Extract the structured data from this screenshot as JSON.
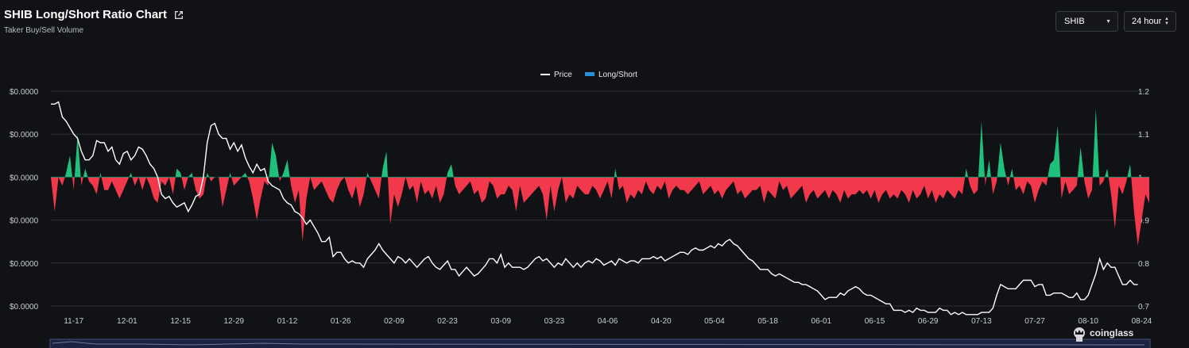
{
  "header": {
    "title": "SHIB Long/Short Ratio Chart",
    "subtitle": "Taker Buy/Sell Volume"
  },
  "controls": {
    "coin_value": "SHIB",
    "period_value": "24 hour"
  },
  "brand": "coinglass",
  "colors": {
    "background": "#111216",
    "long": "#1fc07c",
    "short": "#f2394b",
    "price": "#ffffff",
    "legend_long_short": "#2a8fd8",
    "grid": "#2c2e35"
  },
  "chart_data": {
    "type": "area",
    "legend": [
      "Price",
      "Long/Short"
    ],
    "legend_position": "top-center",
    "grid": true,
    "left_axis_ticks": [
      "$0.0000",
      "$0.0000",
      "$0.0000",
      "$0.0000",
      "$0.0000",
      "$0.0000"
    ],
    "right_axis": {
      "ticks": [
        "1.2",
        "1.1",
        "1",
        "0.9",
        "0.8",
        "0.7"
      ],
      "range": [
        0.7,
        1.2
      ],
      "baseline": 1
    },
    "price_axis_range": [
      0,
      100
    ],
    "x_ticks": [
      "11-17",
      "12-01",
      "12-15",
      "12-29",
      "01-12",
      "01-26",
      "02-09",
      "02-23",
      "03-09",
      "03-23",
      "04-06",
      "04-20",
      "05-04",
      "05-18",
      "06-01",
      "06-15",
      "06-29",
      "07-13",
      "07-27",
      "08-10",
      "08-24"
    ],
    "x_tick_index": [
      6,
      20,
      34,
      48,
      62,
      76,
      90,
      104,
      118,
      132,
      146,
      160,
      174,
      188,
      202,
      216,
      230,
      244,
      258,
      272,
      286
    ],
    "series": [
      {
        "name": "Long/Short",
        "values": [
          1.0,
          0.92,
          1.0,
          0.98,
          1.01,
          1.05,
          0.97,
          1.1,
          0.98,
          1.02,
          0.99,
          0.98,
          0.96,
          1.01,
          0.97,
          0.97,
          0.99,
          0.97,
          0.95,
          0.97,
          0.99,
          1.01,
          0.98,
          1.0,
          0.97,
          1.0,
          0.98,
          0.95,
          0.94,
          0.99,
          0.98,
          1.0,
          0.96,
          1.02,
          1.01,
          0.97,
          1.0,
          1.01,
          0.97,
          0.95,
          0.96,
          1.01,
          0.99,
          1.0,
          1.0,
          0.93,
          0.97,
          1.01,
          0.98,
          0.99,
          1.0,
          1.01,
          0.99,
          0.95,
          0.9,
          0.95,
          0.99,
          0.98,
          1.08,
          1.05,
          0.99,
          1.01,
          1.04,
          0.98,
          0.94,
          0.97,
          0.85,
          0.95,
          1.0,
          0.97,
          0.98,
          0.99,
          0.97,
          0.95,
          0.94,
          0.97,
          0.99,
          1.0,
          0.97,
          0.95,
          0.98,
          0.93,
          0.96,
          1.01,
          0.99,
          0.97,
          0.95,
          1.02,
          1.06,
          0.89,
          0.96,
          0.93,
          0.96,
          1.0,
          0.97,
          0.98,
          0.94,
          0.99,
          0.96,
          0.97,
          0.95,
          0.98,
          0.94,
          0.96,
          1.01,
          1.03,
          0.98,
          0.96,
          0.97,
          0.98,
          0.99,
          0.96,
          0.97,
          0.94,
          0.95,
          0.99,
          0.98,
          0.95,
          0.96,
          0.96,
          0.98,
          0.97,
          0.92,
          0.98,
          0.94,
          0.95,
          0.96,
          0.97,
          0.98,
          0.96,
          0.9,
          0.98,
          0.92,
          0.97,
          1.0,
          0.94,
          0.96,
          0.95,
          0.98,
          0.97,
          0.96,
          0.96,
          0.98,
          0.97,
          0.95,
          0.97,
          0.99,
          0.95,
          1.02,
          0.97,
          0.98,
          0.94,
          0.96,
          0.95,
          0.97,
          0.96,
          0.99,
          0.97,
          0.96,
          0.98,
          0.97,
          0.99,
          0.95,
          0.97,
          0.98,
          0.97,
          0.97,
          0.96,
          0.97,
          0.98,
          0.99,
          0.96,
          0.97,
          0.98,
          0.96,
          0.97,
          0.95,
          0.97,
          0.98,
          0.99,
          0.96,
          0.97,
          0.95,
          0.96,
          0.97,
          0.97,
          0.98,
          0.94,
          0.97,
          0.96,
          0.95,
          0.99,
          0.97,
          0.98,
          0.95,
          0.96,
          0.97,
          0.98,
          0.94,
          0.96,
          0.97,
          0.95,
          0.96,
          0.97,
          0.95,
          0.97,
          0.96,
          0.94,
          0.97,
          0.95,
          0.96,
          0.96,
          0.97,
          0.96,
          0.97,
          0.95,
          0.97,
          0.94,
          0.96,
          0.97,
          0.95,
          0.96,
          0.95,
          0.97,
          0.96,
          0.94,
          0.97,
          0.95,
          0.96,
          0.98,
          0.95,
          0.97,
          0.94,
          0.96,
          0.95,
          0.97,
          0.96,
          0.95,
          0.97,
          0.96,
          1.02,
          0.98,
          0.96,
          0.97,
          1.13,
          0.98,
          1.04,
          0.96,
          0.99,
          1.08,
          1.02,
          0.98,
          1.02,
          0.97,
          0.98,
          0.96,
          0.99,
          0.98,
          0.94,
          0.97,
          0.99,
          0.98,
          1.03,
          1.04,
          1.12,
          0.95,
          0.99,
          0.96,
          0.97,
          0.98,
          1.07,
          0.99,
          0.95,
          0.97,
          1.16,
          0.98,
          0.99,
          1.02,
          0.96,
          0.88,
          0.98,
          0.96,
          0.99,
          1.03,
          0.92,
          0.84,
          0.9,
          0.96,
          0.94
        ]
      },
      {
        "name": "Price",
        "values": [
          94,
          94,
          95,
          88,
          86,
          83,
          80,
          78,
          72,
          68,
          68,
          70,
          77,
          76,
          76,
          72,
          74,
          68,
          66,
          71,
          72,
          68,
          70,
          74,
          73,
          70,
          66,
          64,
          60,
          52,
          50,
          51,
          48,
          46,
          47,
          48,
          44,
          47,
          51,
          52,
          60,
          76,
          84,
          85,
          80,
          78,
          78,
          73,
          76,
          72,
          75,
          69,
          65,
          62,
          66,
          63,
          64,
          58,
          56,
          55,
          54,
          50,
          48,
          47,
          44,
          43,
          41,
          38,
          40,
          37,
          34,
          30,
          30,
          32,
          23,
          25,
          25,
          22,
          20,
          21,
          20,
          20,
          18,
          22,
          24,
          26,
          29,
          26,
          24,
          22,
          20,
          23,
          22,
          20,
          22,
          20,
          18,
          20,
          22,
          23,
          20,
          18,
          17,
          19,
          21,
          17,
          17,
          14,
          16,
          18,
          16,
          14,
          15,
          17,
          19,
          22,
          22,
          20,
          24,
          18,
          20,
          18,
          18,
          18,
          17,
          18,
          20,
          22,
          23,
          21,
          22,
          20,
          18,
          20,
          19,
          22,
          20,
          18,
          20,
          18,
          20,
          21,
          20,
          22,
          21,
          19,
          20,
          21,
          19,
          22,
          21,
          20,
          21,
          21,
          20,
          22,
          22,
          22,
          23,
          22,
          23,
          21,
          22,
          23,
          24,
          25,
          25,
          24,
          26,
          27,
          26,
          26,
          27,
          28,
          27,
          29,
          28,
          30,
          31,
          29,
          28,
          26,
          24,
          22,
          21,
          19,
          17,
          17,
          17,
          15,
          14,
          15,
          14,
          13,
          12,
          11,
          11,
          10,
          10,
          9,
          8,
          7,
          5,
          3,
          4,
          4,
          4,
          6,
          5,
          7,
          8,
          9,
          8,
          6,
          5,
          5,
          4,
          3,
          2,
          1,
          1,
          -2,
          -2,
          -2,
          -3,
          -2,
          -3,
          -1,
          -2,
          -2,
          -3,
          -3,
          -3,
          -1,
          -2,
          -2,
          -4,
          -3,
          -4,
          -3,
          -4,
          -4,
          -4,
          -4,
          -3,
          -3,
          -3,
          -1,
          5,
          10,
          9,
          8,
          8,
          8,
          10,
          12,
          12,
          12,
          9,
          10,
          10,
          5,
          5,
          6,
          6,
          6,
          5,
          4,
          4,
          6,
          3,
          3,
          5,
          10,
          15,
          22,
          17,
          20,
          18,
          18,
          14,
          10,
          10,
          12,
          10,
          10
        ]
      }
    ]
  }
}
